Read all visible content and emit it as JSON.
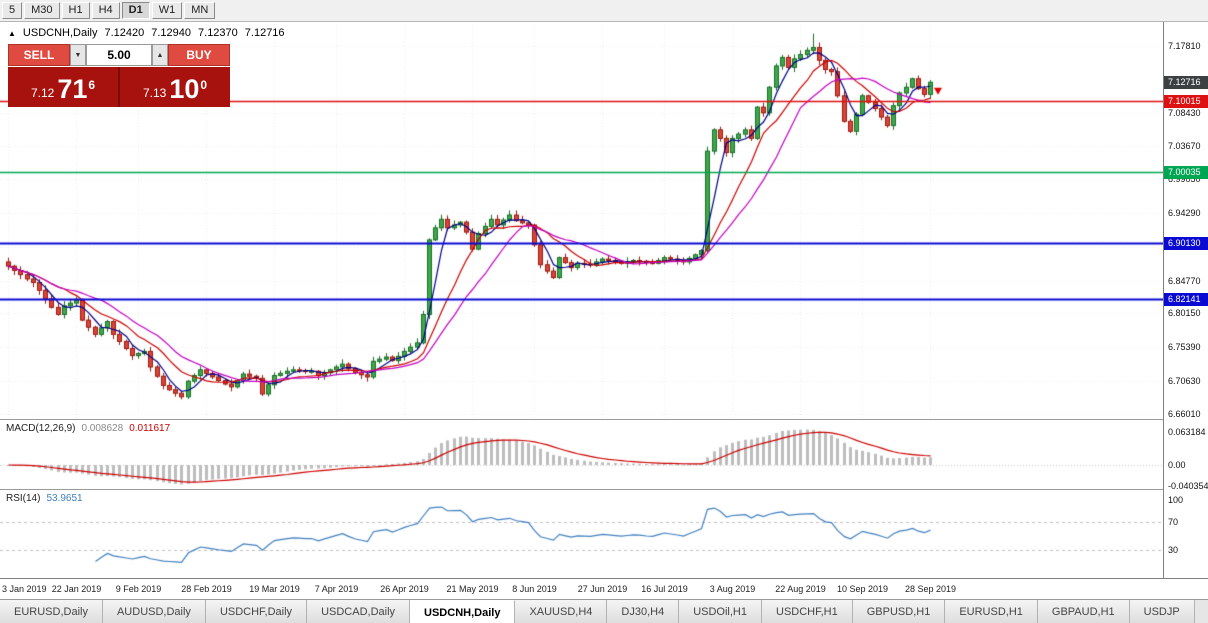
{
  "toolbar": {
    "periods": [
      "5",
      "M30",
      "H1",
      "H4",
      "D1",
      "W1",
      "MN"
    ],
    "active": "D1"
  },
  "symbol_header": {
    "marker": "▲",
    "symbol": "USDCNH,Daily",
    "open": "7.12420",
    "high": "7.12940",
    "low": "7.12370",
    "close": "7.12716"
  },
  "trade_panel": {
    "sell_label": "SELL",
    "buy_label": "BUY",
    "volume": "5.00",
    "bid": {
      "prefix": "7.12",
      "big": "71",
      "sup": "6"
    },
    "ask": {
      "prefix": "7.13",
      "big": "10",
      "sup": "0"
    }
  },
  "price_axis": {
    "ticks": [
      {
        "label": "7.17810",
        "price": 7.1781
      },
      {
        "label": "7.08430",
        "price": 7.0843
      },
      {
        "label": "7.03670",
        "price": 7.0367
      },
      {
        "label": "6.99050",
        "price": 6.9905
      },
      {
        "label": "6.94290",
        "price": 6.9429
      },
      {
        "label": "6.89530",
        "price": 6.8953
      },
      {
        "label": "6.84770",
        "price": 6.8477
      },
      {
        "label": "6.80150",
        "price": 6.8015
      },
      {
        "label": "6.75390",
        "price": 6.7539
      },
      {
        "label": "6.70630",
        "price": 6.7063
      },
      {
        "label": "6.66010",
        "price": 6.6601
      }
    ],
    "current": {
      "label": "7.12716",
      "price": 7.12716,
      "bg": "#3c4043"
    },
    "levels": [
      {
        "label": "7.10015",
        "price": 7.10015,
        "color": "#dd1111"
      },
      {
        "label": "7.00035",
        "price": 7.00035,
        "color": "#00a651"
      },
      {
        "label": "6.90130",
        "price": 6.9013,
        "color": "#0a0ad2"
      },
      {
        "label": "6.82141",
        "price": 6.82141,
        "color": "#0a0ad2"
      }
    ]
  },
  "macd": {
    "name": "MACD(12,26,9)",
    "value1": "0.008628",
    "value2": "0.011617",
    "scale_labels": [
      "0.063184",
      "0.00",
      "-0.040354"
    ]
  },
  "rsi": {
    "name": "RSI(14)",
    "value": "53.9651",
    "scale_labels": [
      "100",
      "70",
      "30"
    ]
  },
  "tabs": {
    "items": [
      "EURUSD,Daily",
      "AUDUSD,Daily",
      "USDCHF,Daily",
      "USDCAD,Daily",
      "USDCNH,Daily",
      "XAUUSD,H4",
      "DJ30,H4",
      "USDOil,H1",
      "USDCHF,H1",
      "GBPUSD,H1",
      "EURUSD,H1",
      "GBPAUD,H1",
      "USDJP"
    ],
    "active": "USDCNH,Daily"
  },
  "chart_data": {
    "type": "candlestick",
    "symbol": "USDCNH",
    "timeframe": "Daily",
    "title": "USDCNH,Daily 7.12420 7.12940 7.12370 7.12716",
    "x_labels": [
      "3 Jan 2019",
      "22 Jan 2019",
      "9 Feb 2019",
      "28 Feb 2019",
      "19 Mar 2019",
      "7 Apr 2019",
      "26 Apr 2019",
      "21 May 2019",
      "8 Jun 2019",
      "27 Jun 2019",
      "16 Jul 2019",
      "3 Aug 2019",
      "22 Aug 2019",
      "10 Sep 2019",
      "28 Sep 2019"
    ],
    "y_range": [
      6.6601,
      7.196
    ],
    "closes": [
      6.868,
      6.862,
      6.856,
      6.85,
      6.845,
      6.834,
      6.822,
      6.81,
      6.8,
      6.812,
      6.816,
      6.82,
      6.792,
      6.782,
      6.772,
      6.781,
      6.79,
      6.772,
      6.762,
      6.752,
      6.742,
      6.745,
      6.748,
      6.726,
      6.713,
      6.7,
      6.694,
      6.689,
      6.684,
      6.706,
      6.714,
      6.722,
      6.717,
      6.712,
      6.707,
      6.702,
      6.698,
      6.707,
      6.716,
      6.713,
      6.71,
      6.688,
      6.701,
      6.714,
      6.717,
      6.72,
      6.722,
      6.721,
      6.72,
      6.72,
      6.714,
      6.718,
      6.722,
      6.726,
      6.73,
      6.724,
      6.718,
      6.715,
      6.712,
      6.734,
      6.737,
      6.74,
      6.735,
      6.741,
      6.748,
      6.754,
      6.76,
      6.8,
      6.905,
      6.922,
      6.934,
      6.922,
      6.926,
      6.93,
      6.916,
      6.892,
      6.914,
      6.924,
      6.934,
      6.926,
      6.933,
      6.94,
      6.932,
      6.929,
      6.926,
      6.898,
      6.87,
      6.861,
      6.852,
      6.88,
      6.873,
      6.866,
      6.872,
      6.871,
      6.87,
      6.874,
      6.878,
      6.876,
      6.874,
      6.872,
      6.874,
      6.876,
      6.875,
      6.873,
      6.872,
      6.876,
      6.88,
      6.878,
      6.876,
      6.874,
      6.879,
      6.884,
      6.89,
      7.03,
      7.06,
      7.048,
      7.028,
      7.048,
      7.054,
      7.06,
      7.048,
      7.092,
      7.084,
      7.12,
      7.15,
      7.162,
      7.148,
      7.16,
      7.166,
      7.172,
      7.176,
      7.158,
      7.145,
      7.142,
      7.108,
      7.072,
      7.058,
      7.082,
      7.108,
      7.099,
      7.09,
      7.078,
      7.066,
      7.094,
      7.112,
      7.12,
      7.132,
      7.118,
      7.11,
      7.127
    ],
    "last_price": 7.12716,
    "peak_high": 7.1955,
    "moving_averages": [
      {
        "period": 4,
        "color": "#00008b"
      },
      {
        "period": 10,
        "color": "#cc0000"
      },
      {
        "period": 16,
        "color": "#c400c4"
      }
    ],
    "macd": {
      "fast": 12,
      "slow": 26,
      "signal": 9,
      "scale": [
        0.063184,
        0.0,
        -0.040354
      ]
    },
    "rsi": {
      "period": 14,
      "levels": [
        100,
        70,
        30
      ]
    },
    "colors": {
      "up_fill": "#3fa84b",
      "up_stroke": "#1a6e26",
      "down_fill": "#dc4437",
      "down_stroke": "#991b10",
      "macd_hist": "#bdbdbd",
      "macd_signal": "#cc0000",
      "rsi_line": "#3f7fbf",
      "grid": "#ebebeb"
    }
  }
}
